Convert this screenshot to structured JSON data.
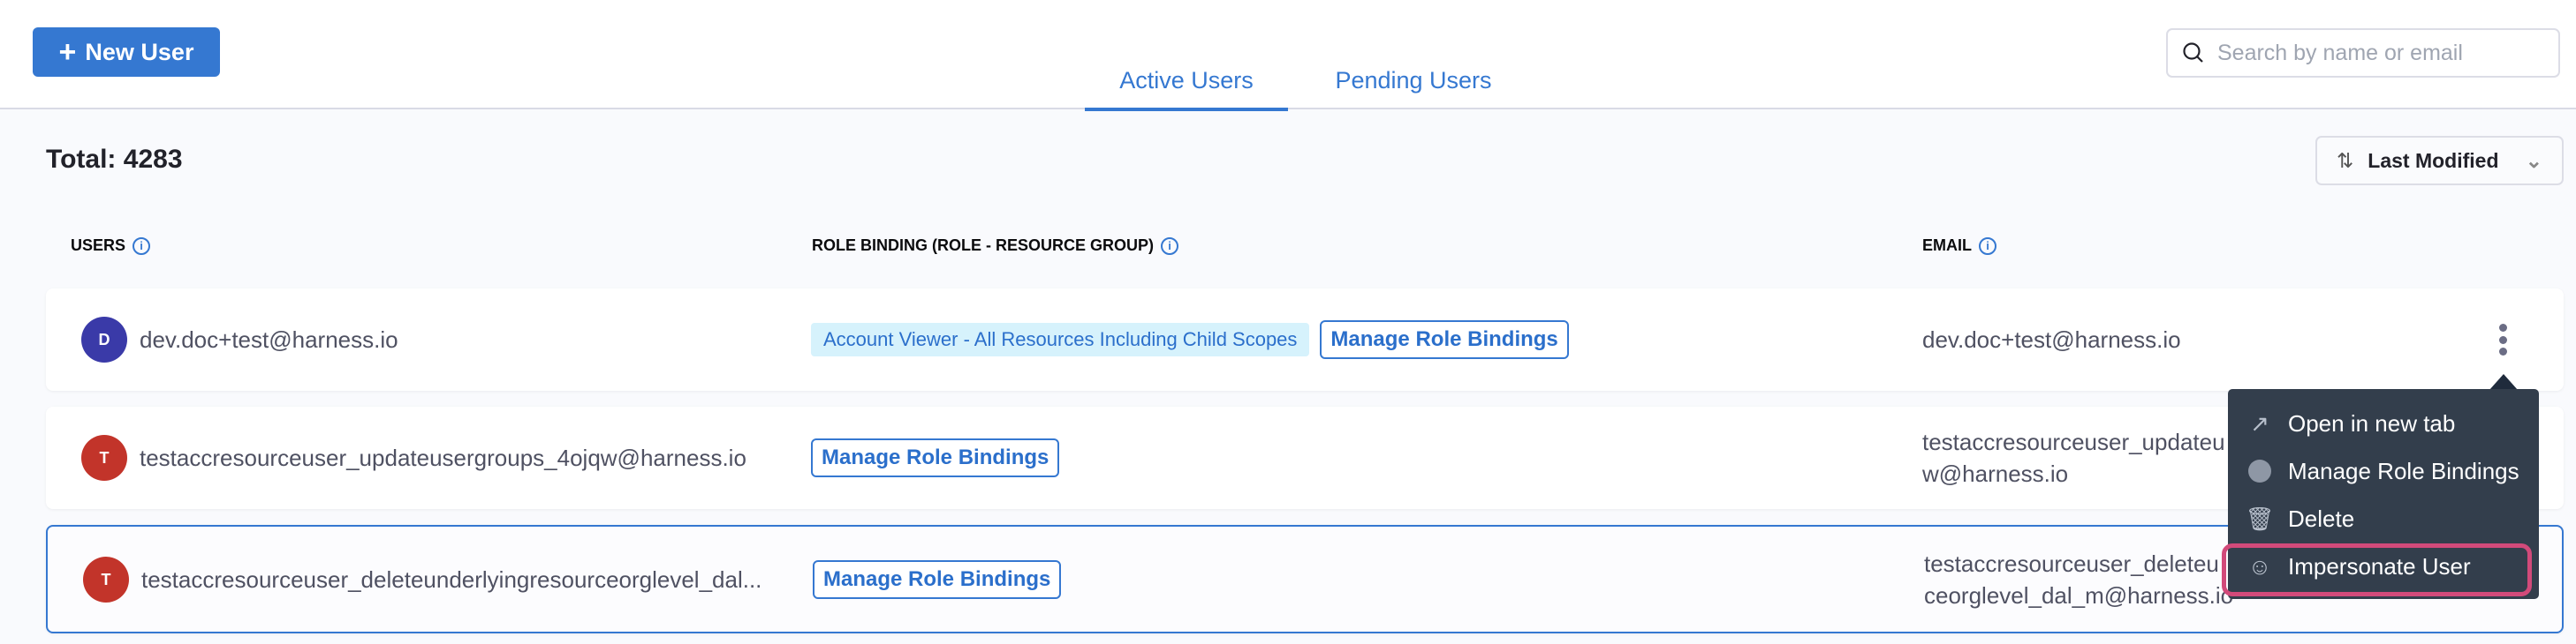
{
  "toolbar": {
    "new_user_label": "New User",
    "search_placeholder": "Search by name or email"
  },
  "tabs": [
    {
      "label": "Active Users",
      "active": true
    },
    {
      "label": "Pending Users",
      "active": false
    }
  ],
  "summary": {
    "total": "Total: 4283"
  },
  "sort": {
    "label": "Last Modified"
  },
  "columns": {
    "users": "USERS",
    "role_binding": "ROLE BINDING (ROLE - RESOURCE GROUP)",
    "email": "EMAIL"
  },
  "rows": [
    {
      "initial": "D",
      "name": "dev.doc+test@harness.io",
      "role": "Account Viewer - All Resources Including Child Scopes",
      "manage": "Manage Role Bindings",
      "email_line1": "dev.doc+test@harness.io",
      "email_line2": "",
      "avatar_color": "#3a3aa8"
    },
    {
      "initial": "T",
      "name": "testaccresourceuser_updateusergroups_4ojqw@harness.io",
      "role": "",
      "manage": "Manage Role Bindings",
      "email_line1": "testaccresourceuser_updateu",
      "email_line2": "w@harness.io",
      "avatar_color": "#c2342a"
    },
    {
      "initial": "T",
      "name": "testaccresourceuser_deleteunderlyingresourceorglevel_dal...",
      "role": "",
      "manage": "Manage Role Bindings",
      "email_line1": "testaccresourceuser_deleteu",
      "email_line2": "ceorglevel_dal_m@harness.io",
      "avatar_color": "#c2342a"
    }
  ],
  "menu": {
    "items": [
      {
        "label": "Open in new tab",
        "icon": "external-link-icon"
      },
      {
        "label": "Manage Role Bindings",
        "icon": "role-bindings-icon"
      },
      {
        "label": "Delete",
        "icon": "trash-icon"
      },
      {
        "label": "Impersonate User",
        "icon": "masks-icon",
        "highlighted": true
      }
    ]
  },
  "colors": {
    "accent": "#3578d1",
    "highlight": "#d24a7a",
    "menu_bg": "#333e4c"
  }
}
